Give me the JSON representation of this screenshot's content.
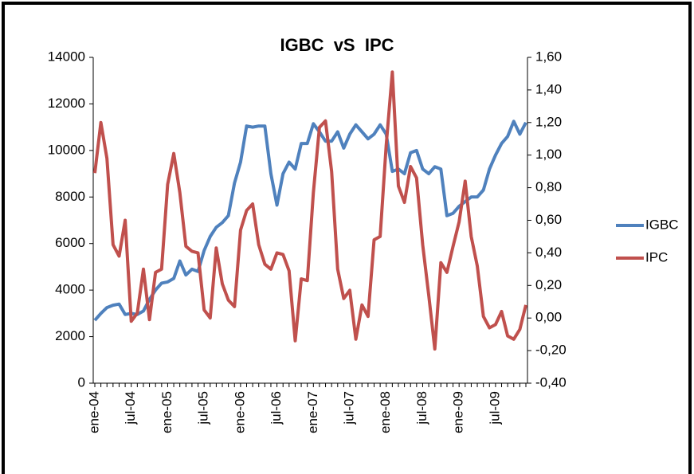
{
  "chart_data": {
    "type": "line",
    "title": "IGBC  vS  IPC",
    "categories": [
      "ene-04",
      null,
      null,
      null,
      null,
      null,
      "jul-04",
      null,
      null,
      null,
      null,
      null,
      "ene-05",
      null,
      null,
      null,
      null,
      null,
      "jul-05",
      null,
      null,
      null,
      null,
      null,
      "ene-06",
      null,
      null,
      null,
      null,
      null,
      "jul-06",
      null,
      null,
      null,
      null,
      null,
      "ene-07",
      null,
      null,
      null,
      null,
      null,
      "jul-07",
      null,
      null,
      null,
      null,
      null,
      "ene-08",
      null,
      null,
      null,
      null,
      null,
      "jul-08",
      null,
      null,
      null,
      null,
      null,
      "ene-09",
      null,
      null,
      null,
      null,
      null,
      "jul-09",
      null,
      null,
      null,
      null,
      null
    ],
    "series": [
      {
        "name": "IGBC",
        "color": "#4f81bd",
        "axis": "y",
        "values": [
          2700,
          3000,
          3250,
          3350,
          3400,
          2950,
          3000,
          2950,
          3100,
          3600,
          4000,
          4300,
          4350,
          4500,
          5250,
          4650,
          4900,
          4800,
          5700,
          6300,
          6700,
          6900,
          7200,
          8600,
          9500,
          11050,
          11000,
          11050,
          11050,
          9000,
          7650,
          9000,
          9500,
          9200,
          10300,
          10300,
          11150,
          10800,
          10400,
          10400,
          10800,
          10100,
          10700,
          11100,
          10800,
          10500,
          10700,
          11100,
          10700,
          9100,
          9200,
          9000,
          9900,
          10000,
          9200,
          9000,
          9300,
          9200,
          7200,
          7300,
          7600,
          7800,
          8000,
          8000,
          8300,
          9200,
          9800,
          10300,
          10600,
          11250,
          10700,
          11200
        ]
      },
      {
        "name": "IPC",
        "color": "#c0504d",
        "axis": "y2",
        "values": [
          0.89,
          1.2,
          0.98,
          0.45,
          0.38,
          0.6,
          -0.02,
          0.03,
          0.3,
          -0.01,
          0.28,
          0.3,
          0.82,
          1.01,
          0.77,
          0.44,
          0.41,
          0.4,
          0.05,
          0.0,
          0.43,
          0.21,
          0.11,
          0.07,
          0.54,
          0.66,
          0.7,
          0.45,
          0.33,
          0.3,
          0.4,
          0.39,
          0.29,
          -0.14,
          0.24,
          0.23,
          0.77,
          1.17,
          1.21,
          0.9,
          0.3,
          0.12,
          0.17,
          -0.13,
          0.08,
          0.01,
          0.48,
          0.5,
          1.06,
          1.51,
          0.81,
          0.71,
          0.93,
          0.86,
          0.45,
          0.14,
          -0.19,
          0.34,
          0.28,
          0.44,
          0.59,
          0.84,
          0.5,
          0.32,
          0.01,
          -0.06,
          -0.04,
          0.04,
          -0.11,
          -0.13,
          -0.07,
          0.08
        ]
      }
    ],
    "ylim": [
      0,
      14000
    ],
    "yticks": [
      0,
      2000,
      4000,
      6000,
      8000,
      10000,
      12000,
      14000
    ],
    "y2lim": [
      -0.4,
      1.6
    ],
    "y2ticks": [
      {
        "value": -0.4,
        "label": "-0,40"
      },
      {
        "value": -0.2,
        "label": "-0,20"
      },
      {
        "value": 0,
        "label": "0,00"
      },
      {
        "value": 0.2,
        "label": "0,20"
      },
      {
        "value": 0.4,
        "label": "0,40"
      },
      {
        "value": 0.6,
        "label": "0,60"
      },
      {
        "value": 0.8,
        "label": "0,80"
      },
      {
        "value": 1.0,
        "label": "1,00"
      },
      {
        "value": 1.2,
        "label": "1,20"
      },
      {
        "value": 1.4,
        "label": "1,40"
      },
      {
        "value": 1.6,
        "label": "1,60"
      }
    ],
    "legend": "right"
  }
}
